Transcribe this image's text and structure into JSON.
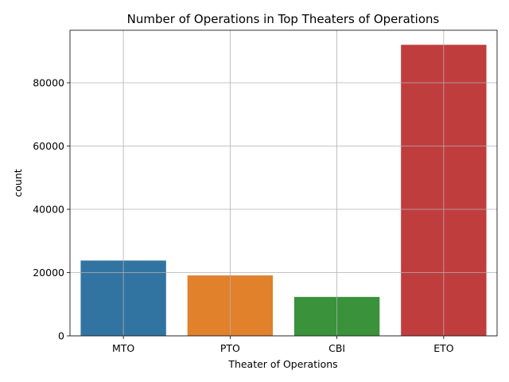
{
  "chart_data": {
    "type": "bar",
    "title": "Number of Operations in Top Theaters of Operations",
    "xlabel": "Theater of Operations",
    "ylabel": "count",
    "categories": [
      "MTO",
      "PTO",
      "CBI",
      "ETO"
    ],
    "values": [
      23800,
      19100,
      12300,
      92000
    ],
    "colors": [
      "#3274a1",
      "#e1812c",
      "#3a923a",
      "#c03d3e"
    ],
    "ylim": [
      0,
      96600
    ],
    "yticks": [
      0,
      20000,
      40000,
      60000,
      80000
    ],
    "grid": true
  }
}
